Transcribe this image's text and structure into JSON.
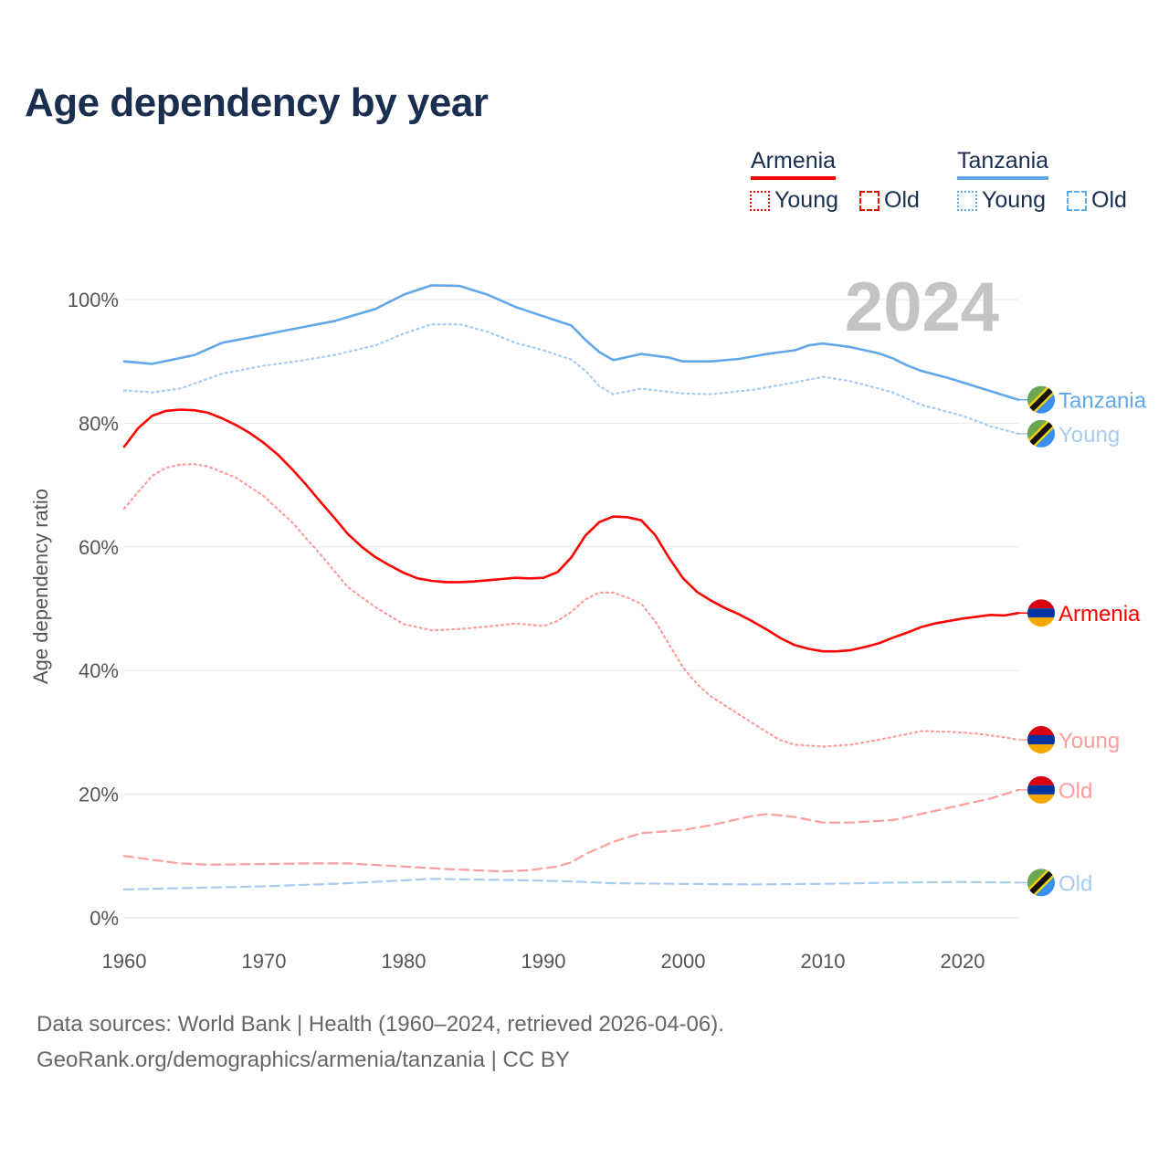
{
  "title": "Age dependency by year",
  "legend": {
    "armenia": {
      "label": "Armenia",
      "young": "Young",
      "old": "Old"
    },
    "tanzania": {
      "label": "Tanzania",
      "young": "Young",
      "old": "Old"
    }
  },
  "source_line1": "Data sources: World Bank | Health (1960–2024, retrieved 2026-04-06).",
  "source_line2": "GeoRank.org/demographics/armenia/tanzania | CC BY",
  "colors": {
    "armenia": "#ff0000",
    "armenia_light": "#ff9c9c",
    "tanzania": "#62a8e8",
    "tanzania_light": "#a6cbf1"
  },
  "chart_data": {
    "type": "line",
    "title": "Age dependency by year",
    "xlabel": "",
    "ylabel": "Age dependency ratio",
    "xlim": [
      1960,
      2024
    ],
    "ylim": [
      0,
      100
    ],
    "x_ticks": [
      "1960",
      "1970",
      "1980",
      "1990",
      "2000",
      "2010",
      "2020"
    ],
    "y_ticks": [
      "0%",
      "20%",
      "40%",
      "60%",
      "80%",
      "100%"
    ],
    "year_annotation": "2024",
    "grid": true,
    "series": [
      {
        "name": "Tanzania",
        "label": "Tanzania",
        "country": "tanzania",
        "style": "solid",
        "color": "#62a8e8",
        "points": [
          [
            1960,
            90
          ],
          [
            1962,
            89.6
          ],
          [
            1965,
            91
          ],
          [
            1967,
            93
          ],
          [
            1970,
            94.3
          ],
          [
            1972,
            95.2
          ],
          [
            1975,
            96.5
          ],
          [
            1978,
            98.5
          ],
          [
            1980,
            100.8
          ],
          [
            1982,
            102.3
          ],
          [
            1984,
            102.2
          ],
          [
            1986,
            100.8
          ],
          [
            1988,
            98.8
          ],
          [
            1990,
            97.3
          ],
          [
            1992,
            95.8
          ],
          [
            1993,
            93.5
          ],
          [
            1994,
            91.5
          ],
          [
            1995,
            90.2
          ],
          [
            1997,
            91.2
          ],
          [
            1999,
            90.6
          ],
          [
            2000,
            90
          ],
          [
            2002,
            90
          ],
          [
            2004,
            90.4
          ],
          [
            2006,
            91.2
          ],
          [
            2008,
            91.8
          ],
          [
            2009,
            92.6
          ],
          [
            2010,
            92.9
          ],
          [
            2012,
            92.3
          ],
          [
            2014,
            91.3
          ],
          [
            2015,
            90.5
          ],
          [
            2016,
            89.4
          ],
          [
            2017,
            88.5
          ],
          [
            2019,
            87.3
          ],
          [
            2020,
            86.6
          ],
          [
            2022,
            85.2
          ],
          [
            2024,
            83.8
          ]
        ]
      },
      {
        "name": "Tanzania Young",
        "label": "Young",
        "country": "tanzania",
        "style": "dotted",
        "color": "#a6cbf1",
        "points": [
          [
            1960,
            85.3
          ],
          [
            1962,
            85
          ],
          [
            1964,
            85.6
          ],
          [
            1967,
            88
          ],
          [
            1970,
            89.3
          ],
          [
            1972,
            89.9
          ],
          [
            1975,
            91
          ],
          [
            1978,
            92.6
          ],
          [
            1980,
            94.5
          ],
          [
            1982,
            96
          ],
          [
            1984,
            96
          ],
          [
            1986,
            94.8
          ],
          [
            1988,
            93
          ],
          [
            1990,
            91.8
          ],
          [
            1992,
            90.3
          ],
          [
            1993,
            88.5
          ],
          [
            1994,
            86
          ],
          [
            1995,
            84.7
          ],
          [
            1997,
            85.6
          ],
          [
            2000,
            84.8
          ],
          [
            2002,
            84.7
          ],
          [
            2005,
            85.4
          ],
          [
            2008,
            86.6
          ],
          [
            2010,
            87.5
          ],
          [
            2012,
            86.8
          ],
          [
            2015,
            85
          ],
          [
            2017,
            83
          ],
          [
            2020,
            81.2
          ],
          [
            2022,
            79.5
          ],
          [
            2024,
            78.3
          ]
        ]
      },
      {
        "name": "Armenia",
        "label": "Armenia",
        "country": "armenia",
        "style": "solid",
        "color": "#ff0000",
        "points": [
          [
            1960,
            76.2
          ],
          [
            1961,
            79.2
          ],
          [
            1962,
            81.2
          ],
          [
            1963,
            82
          ],
          [
            1964,
            82.2
          ],
          [
            1965,
            82.1
          ],
          [
            1966,
            81.7
          ],
          [
            1967,
            80.8
          ],
          [
            1968,
            79.7
          ],
          [
            1969,
            78.4
          ],
          [
            1970,
            76.8
          ],
          [
            1971,
            74.9
          ],
          [
            1972,
            72.6
          ],
          [
            1973,
            70.1
          ],
          [
            1974,
            67.4
          ],
          [
            1975,
            64.8
          ],
          [
            1976,
            62.1
          ],
          [
            1977,
            60
          ],
          [
            1978,
            58.3
          ],
          [
            1979,
            57
          ],
          [
            1980,
            55.8
          ],
          [
            1981,
            54.9
          ],
          [
            1982,
            54.5
          ],
          [
            1983,
            54.3
          ],
          [
            1984,
            54.3
          ],
          [
            1985,
            54.4
          ],
          [
            1986,
            54.6
          ],
          [
            1987,
            54.8
          ],
          [
            1988,
            55
          ],
          [
            1989,
            54.9
          ],
          [
            1990,
            55
          ],
          [
            1991,
            55.9
          ],
          [
            1992,
            58.3
          ],
          [
            1993,
            61.8
          ],
          [
            1994,
            64
          ],
          [
            1995,
            64.9
          ],
          [
            1996,
            64.8
          ],
          [
            1997,
            64.3
          ],
          [
            1998,
            61.9
          ],
          [
            1999,
            58.2
          ],
          [
            2000,
            54.9
          ],
          [
            2001,
            52.7
          ],
          [
            2002,
            51.3
          ],
          [
            2003,
            50.1
          ],
          [
            2004,
            49.1
          ],
          [
            2005,
            47.9
          ],
          [
            2006,
            46.6
          ],
          [
            2007,
            45.2
          ],
          [
            2008,
            44.1
          ],
          [
            2009,
            43.5
          ],
          [
            2010,
            43.1
          ],
          [
            2011,
            43.1
          ],
          [
            2012,
            43.3
          ],
          [
            2013,
            43.8
          ],
          [
            2014,
            44.4
          ],
          [
            2015,
            45.3
          ],
          [
            2016,
            46.1
          ],
          [
            2017,
            47
          ],
          [
            2018,
            47.6
          ],
          [
            2019,
            48
          ],
          [
            2020,
            48.4
          ],
          [
            2021,
            48.7
          ],
          [
            2022,
            49
          ],
          [
            2023,
            48.9
          ],
          [
            2024,
            49.3
          ]
        ]
      },
      {
        "name": "Armenia Young",
        "label": "Young",
        "country": "armenia",
        "style": "dotted",
        "color": "#ff9c9c",
        "points": [
          [
            1960,
            66.2
          ],
          [
            1962,
            71.5
          ],
          [
            1963,
            72.8
          ],
          [
            1964,
            73.3
          ],
          [
            1965,
            73.4
          ],
          [
            1966,
            73
          ],
          [
            1968,
            71.2
          ],
          [
            1970,
            68.2
          ],
          [
            1972,
            64
          ],
          [
            1974,
            58.9
          ],
          [
            1976,
            53.5
          ],
          [
            1978,
            50.2
          ],
          [
            1980,
            47.5
          ],
          [
            1982,
            46.5
          ],
          [
            1984,
            46.7
          ],
          [
            1986,
            47.1
          ],
          [
            1988,
            47.6
          ],
          [
            1990,
            47.2
          ],
          [
            1991,
            48
          ],
          [
            1992,
            49.5
          ],
          [
            1993,
            51.5
          ],
          [
            1994,
            52.6
          ],
          [
            1995,
            52.6
          ],
          [
            1996,
            51.8
          ],
          [
            1997,
            50.8
          ],
          [
            1998,
            48
          ],
          [
            1999,
            44.2
          ],
          [
            2000,
            40.5
          ],
          [
            2001,
            37.8
          ],
          [
            2002,
            35.8
          ],
          [
            2004,
            32.9
          ],
          [
            2006,
            30
          ],
          [
            2007,
            28.7
          ],
          [
            2008,
            28
          ],
          [
            2010,
            27.7
          ],
          [
            2012,
            28
          ],
          [
            2014,
            28.8
          ],
          [
            2016,
            29.7
          ],
          [
            2017,
            30.2
          ],
          [
            2019,
            30.1
          ],
          [
            2021,
            29.8
          ],
          [
            2023,
            29.2
          ],
          [
            2024,
            28.8
          ]
        ]
      },
      {
        "name": "Armenia Old",
        "label": "Old",
        "country": "armenia",
        "style": "dashed",
        "color": "#ff9c9c",
        "points": [
          [
            1960,
            10
          ],
          [
            1962,
            9.4
          ],
          [
            1964,
            8.8
          ],
          [
            1966,
            8.6
          ],
          [
            1970,
            8.7
          ],
          [
            1973,
            8.8
          ],
          [
            1976,
            8.8
          ],
          [
            1980,
            8.3
          ],
          [
            1983,
            7.9
          ],
          [
            1987,
            7.5
          ],
          [
            1989,
            7.7
          ],
          [
            1991,
            8.3
          ],
          [
            1992,
            9
          ],
          [
            1993,
            10.3
          ],
          [
            1995,
            12.3
          ],
          [
            1997,
            13.7
          ],
          [
            2000,
            14.2
          ],
          [
            2002,
            15
          ],
          [
            2005,
            16.5
          ],
          [
            2006,
            16.8
          ],
          [
            2008,
            16.3
          ],
          [
            2010,
            15.4
          ],
          [
            2012,
            15.4
          ],
          [
            2015,
            15.8
          ],
          [
            2017,
            16.8
          ],
          [
            2020,
            18.3
          ],
          [
            2022,
            19.3
          ],
          [
            2024,
            20.7
          ]
        ]
      },
      {
        "name": "Tanzania Old",
        "label": "Old",
        "country": "tanzania",
        "style": "dashed",
        "color": "#a6cbf1",
        "points": [
          [
            1960,
            4.6
          ],
          [
            1970,
            5.1
          ],
          [
            1976,
            5.6
          ],
          [
            1982,
            6.3
          ],
          [
            1988,
            6.1
          ],
          [
            1992,
            5.9
          ],
          [
            1995,
            5.6
          ],
          [
            2000,
            5.5
          ],
          [
            2005,
            5.4
          ],
          [
            2010,
            5.5
          ],
          [
            2015,
            5.7
          ],
          [
            2020,
            5.8
          ],
          [
            2024,
            5.7
          ]
        ]
      }
    ]
  }
}
